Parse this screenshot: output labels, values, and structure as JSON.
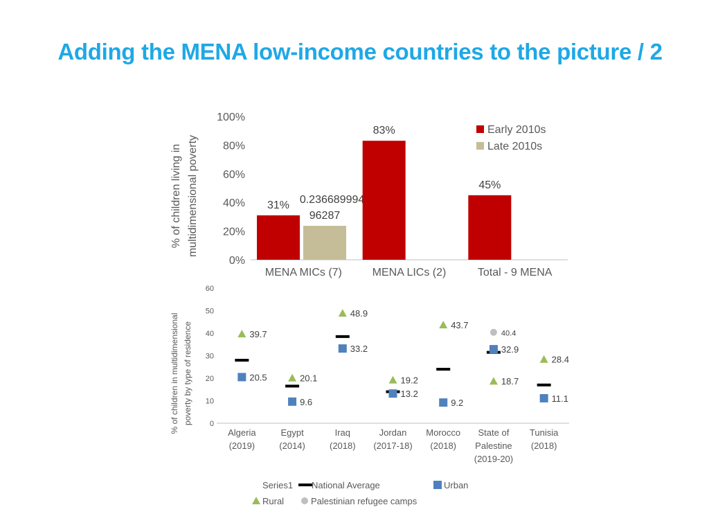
{
  "slide": {
    "title": "Adding the MENA low-income countries to the picture / 2",
    "title_color": "#1FA8E6"
  },
  "chart_data": [
    {
      "type": "bar",
      "ylabel": "% of children living in multidimensional poverty",
      "ylim": [
        0,
        1
      ],
      "yticks": [
        "0%",
        "20%",
        "40%",
        "60%",
        "80%",
        "100%"
      ],
      "categories": [
        "MENA MICs (7)",
        "MENA LICs (2)",
        "Total - 9 MENA"
      ],
      "legend_position": "top-right",
      "series": [
        {
          "name": "Early 2010s",
          "color": "#C00000",
          "values": [
            0.31,
            0.83,
            0.45
          ],
          "labels": [
            "31%",
            "83%",
            "45%"
          ]
        },
        {
          "name": "Late 2010s",
          "color": "#C4BD97",
          "values": [
            0.236689994096287,
            null,
            null
          ],
          "labels": [
            "0.236689994096287",
            "",
            ""
          ]
        }
      ]
    },
    {
      "type": "scatter",
      "ylabel": "% of children in multidimensional poverty by type of residence",
      "ylim": [
        0,
        60
      ],
      "yticks": [
        "0",
        "10",
        "20",
        "30",
        "40",
        "50",
        "60"
      ],
      "categories": [
        "Algeria (2019)",
        "Egypt (2014)",
        "Iraq (2018)",
        "Jordan (2017-18)",
        "Morocco (2018)",
        "State of Palestine (2019-20)",
        "Tunisia (2018)"
      ],
      "legend_position": "bottom",
      "legend_extra": "Series1",
      "series": [
        {
          "name": "National Average",
          "marker": "dash",
          "color": "#000000",
          "values": [
            28,
            16.5,
            38.5,
            14,
            24,
            31.5,
            17
          ],
          "labels": []
        },
        {
          "name": "Urban",
          "marker": "square",
          "color": "#4F81BD",
          "values": [
            20.5,
            9.6,
            33.2,
            13.2,
            9.2,
            32.9,
            11.1
          ],
          "labels": [
            "20.5",
            "9.6",
            "33.2",
            "13.2",
            "9.2",
            "32.9",
            "11.1"
          ]
        },
        {
          "name": "Rural",
          "marker": "triangle",
          "color": "#9BBB59",
          "values": [
            39.7,
            20.1,
            48.9,
            19.2,
            43.7,
            18.7,
            28.4
          ],
          "labels": [
            "39.7",
            "20.1",
            "48.9",
            "19.2",
            "43.7",
            "18.7",
            "28.4"
          ]
        },
        {
          "name": "Palestinian refugee camps",
          "marker": "circle",
          "color": "#BFBFBF",
          "values": [
            null,
            null,
            null,
            null,
            null,
            40.4,
            null
          ],
          "labels": [
            "",
            "",
            "",
            "",
            "",
            "40.4",
            ""
          ]
        }
      ]
    }
  ]
}
